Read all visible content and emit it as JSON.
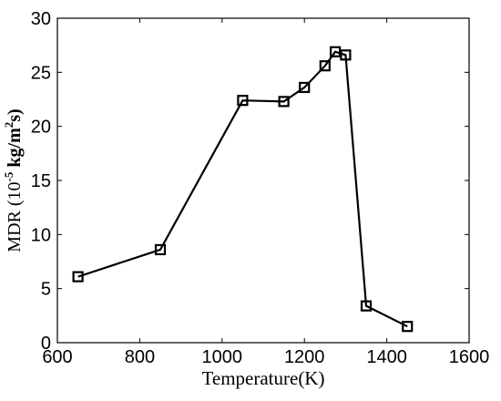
{
  "chart_data": {
    "type": "line",
    "xlabel": "Temperature(K)",
    "ylabel": {
      "prefix": "MDR (10",
      "exp1": "-5",
      "middle": " kg/m",
      "exp2": "2",
      "suffix": "s)"
    },
    "xlim": [
      600,
      1600
    ],
    "ylim": [
      0,
      30
    ],
    "xticks": [
      600,
      800,
      1000,
      1200,
      1400,
      1600
    ],
    "yticks": [
      0,
      5,
      10,
      15,
      20,
      25,
      30
    ],
    "grid": false,
    "legend": "none",
    "marker": "square",
    "series": [
      {
        "x": [
          650,
          850,
          1050,
          1150,
          1200,
          1250,
          1275,
          1300,
          1350,
          1450
        ],
        "y": [
          6.1,
          8.6,
          22.4,
          22.3,
          23.6,
          25.6,
          26.9,
          26.6,
          3.4,
          1.5
        ]
      }
    ],
    "colors": {
      "line": "#000000",
      "axis": "#000000"
    }
  }
}
